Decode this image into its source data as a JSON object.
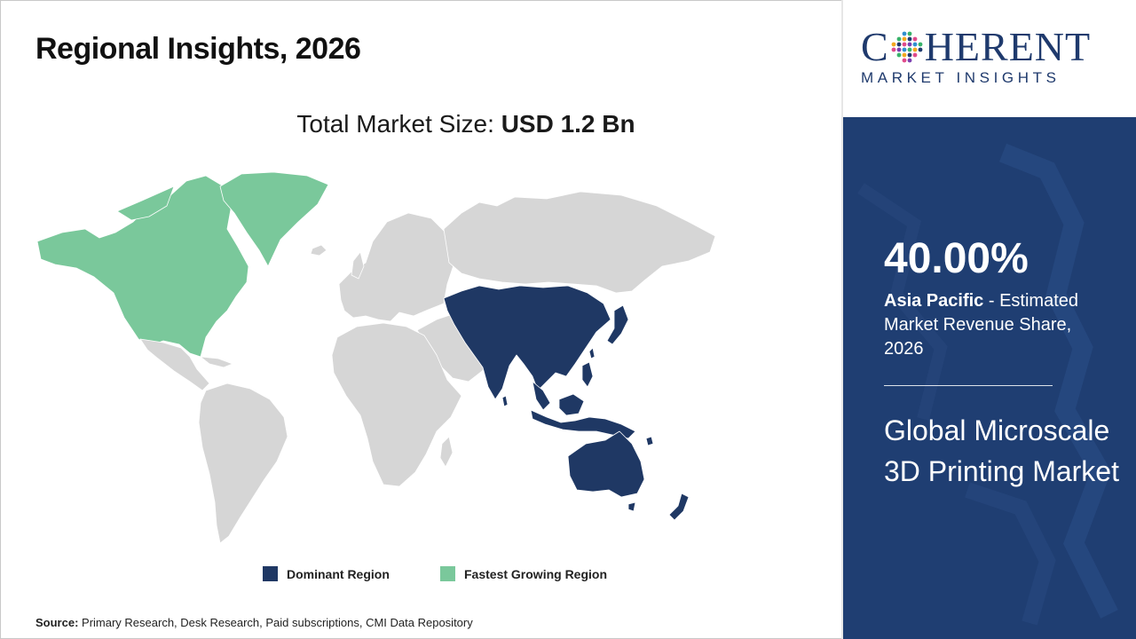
{
  "header": {
    "title": "Regional Insights, 2026"
  },
  "market_size": {
    "label": "Total Market Size:",
    "value": "USD 1.2 Bn"
  },
  "map": {
    "colors": {
      "dominant": "#1f3864",
      "fastest": "#7ac89b",
      "other": "#d6d6d6",
      "border": "#ffffff"
    },
    "regions": [
      {
        "name": "North America",
        "status": "fastest"
      },
      {
        "name": "Asia Pacific",
        "status": "dominant"
      },
      {
        "name": "Latin America",
        "status": "other"
      },
      {
        "name": "Europe",
        "status": "other"
      },
      {
        "name": "Middle East & Africa",
        "status": "other"
      }
    ]
  },
  "legend": [
    {
      "label": "Dominant Region",
      "color": "#1f3864"
    },
    {
      "label": "Fastest Growing Region",
      "color": "#7ac89b"
    }
  ],
  "source": {
    "label": "Source:",
    "text": "Primary Research, Desk Research, Paid subscriptions, CMI Data Repository"
  },
  "brand": {
    "name_part1": "C",
    "name_part2": "HERENT",
    "subtitle": "MARKET INSIGHTS",
    "color": "#1f3a6d"
  },
  "stat": {
    "value": "40.00%",
    "region": "Asia Pacific",
    "description": " - Estimated Market Revenue Share, 2026"
  },
  "market_name": "Global Microscale 3D Printing Market"
}
